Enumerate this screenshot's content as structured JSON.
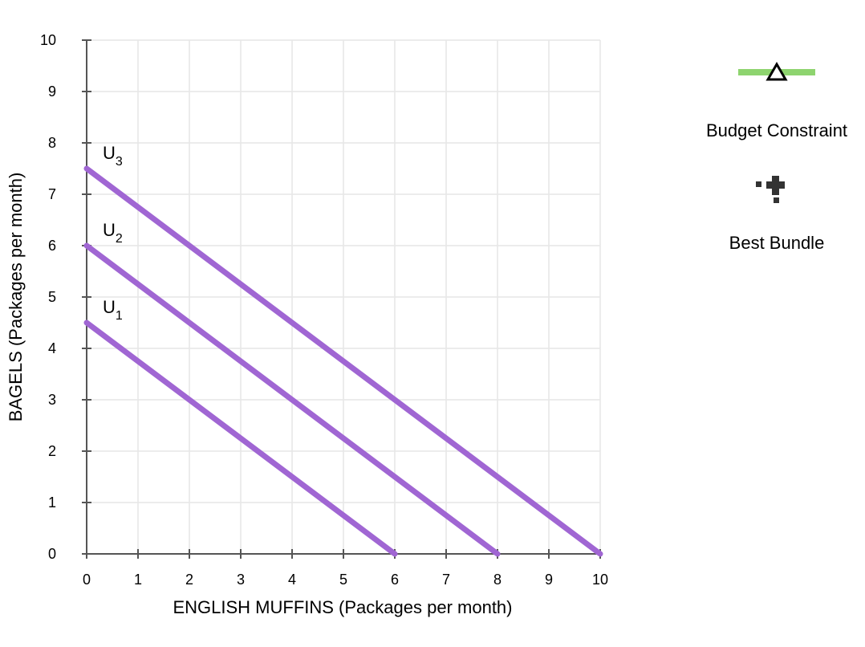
{
  "chart_data": {
    "type": "line",
    "xlabel": "ENGLISH MUFFINS (Packages per month)",
    "ylabel": "BAGELS (Packages per month)",
    "xlim": [
      0,
      10
    ],
    "ylim": [
      0,
      10
    ],
    "x_ticks": [
      "0",
      "1",
      "2",
      "3",
      "4",
      "5",
      "6",
      "7",
      "8",
      "9",
      "10"
    ],
    "y_ticks": [
      "0",
      "1",
      "2",
      "3",
      "4",
      "5",
      "6",
      "7",
      "8",
      "9",
      "10"
    ],
    "grid": true,
    "series": [
      {
        "name": "U",
        "subscript": "1",
        "color": "#a066d3",
        "points": [
          [
            0,
            4.5
          ],
          [
            6,
            0
          ]
        ]
      },
      {
        "name": "U",
        "subscript": "2",
        "color": "#a066d3",
        "points": [
          [
            0,
            6
          ],
          [
            8,
            0
          ]
        ]
      },
      {
        "name": "U",
        "subscript": "3",
        "color": "#a066d3",
        "points": [
          [
            0,
            7.5
          ],
          [
            10,
            0
          ]
        ]
      }
    ],
    "legend": {
      "placement": "right",
      "items": [
        {
          "label": "Budget Constraint",
          "icon": "green-line-triangle-icon",
          "color": "#8ed46f"
        },
        {
          "label": "Best Bundle",
          "icon": "black-plus-icon",
          "color": "#333333"
        }
      ]
    }
  }
}
